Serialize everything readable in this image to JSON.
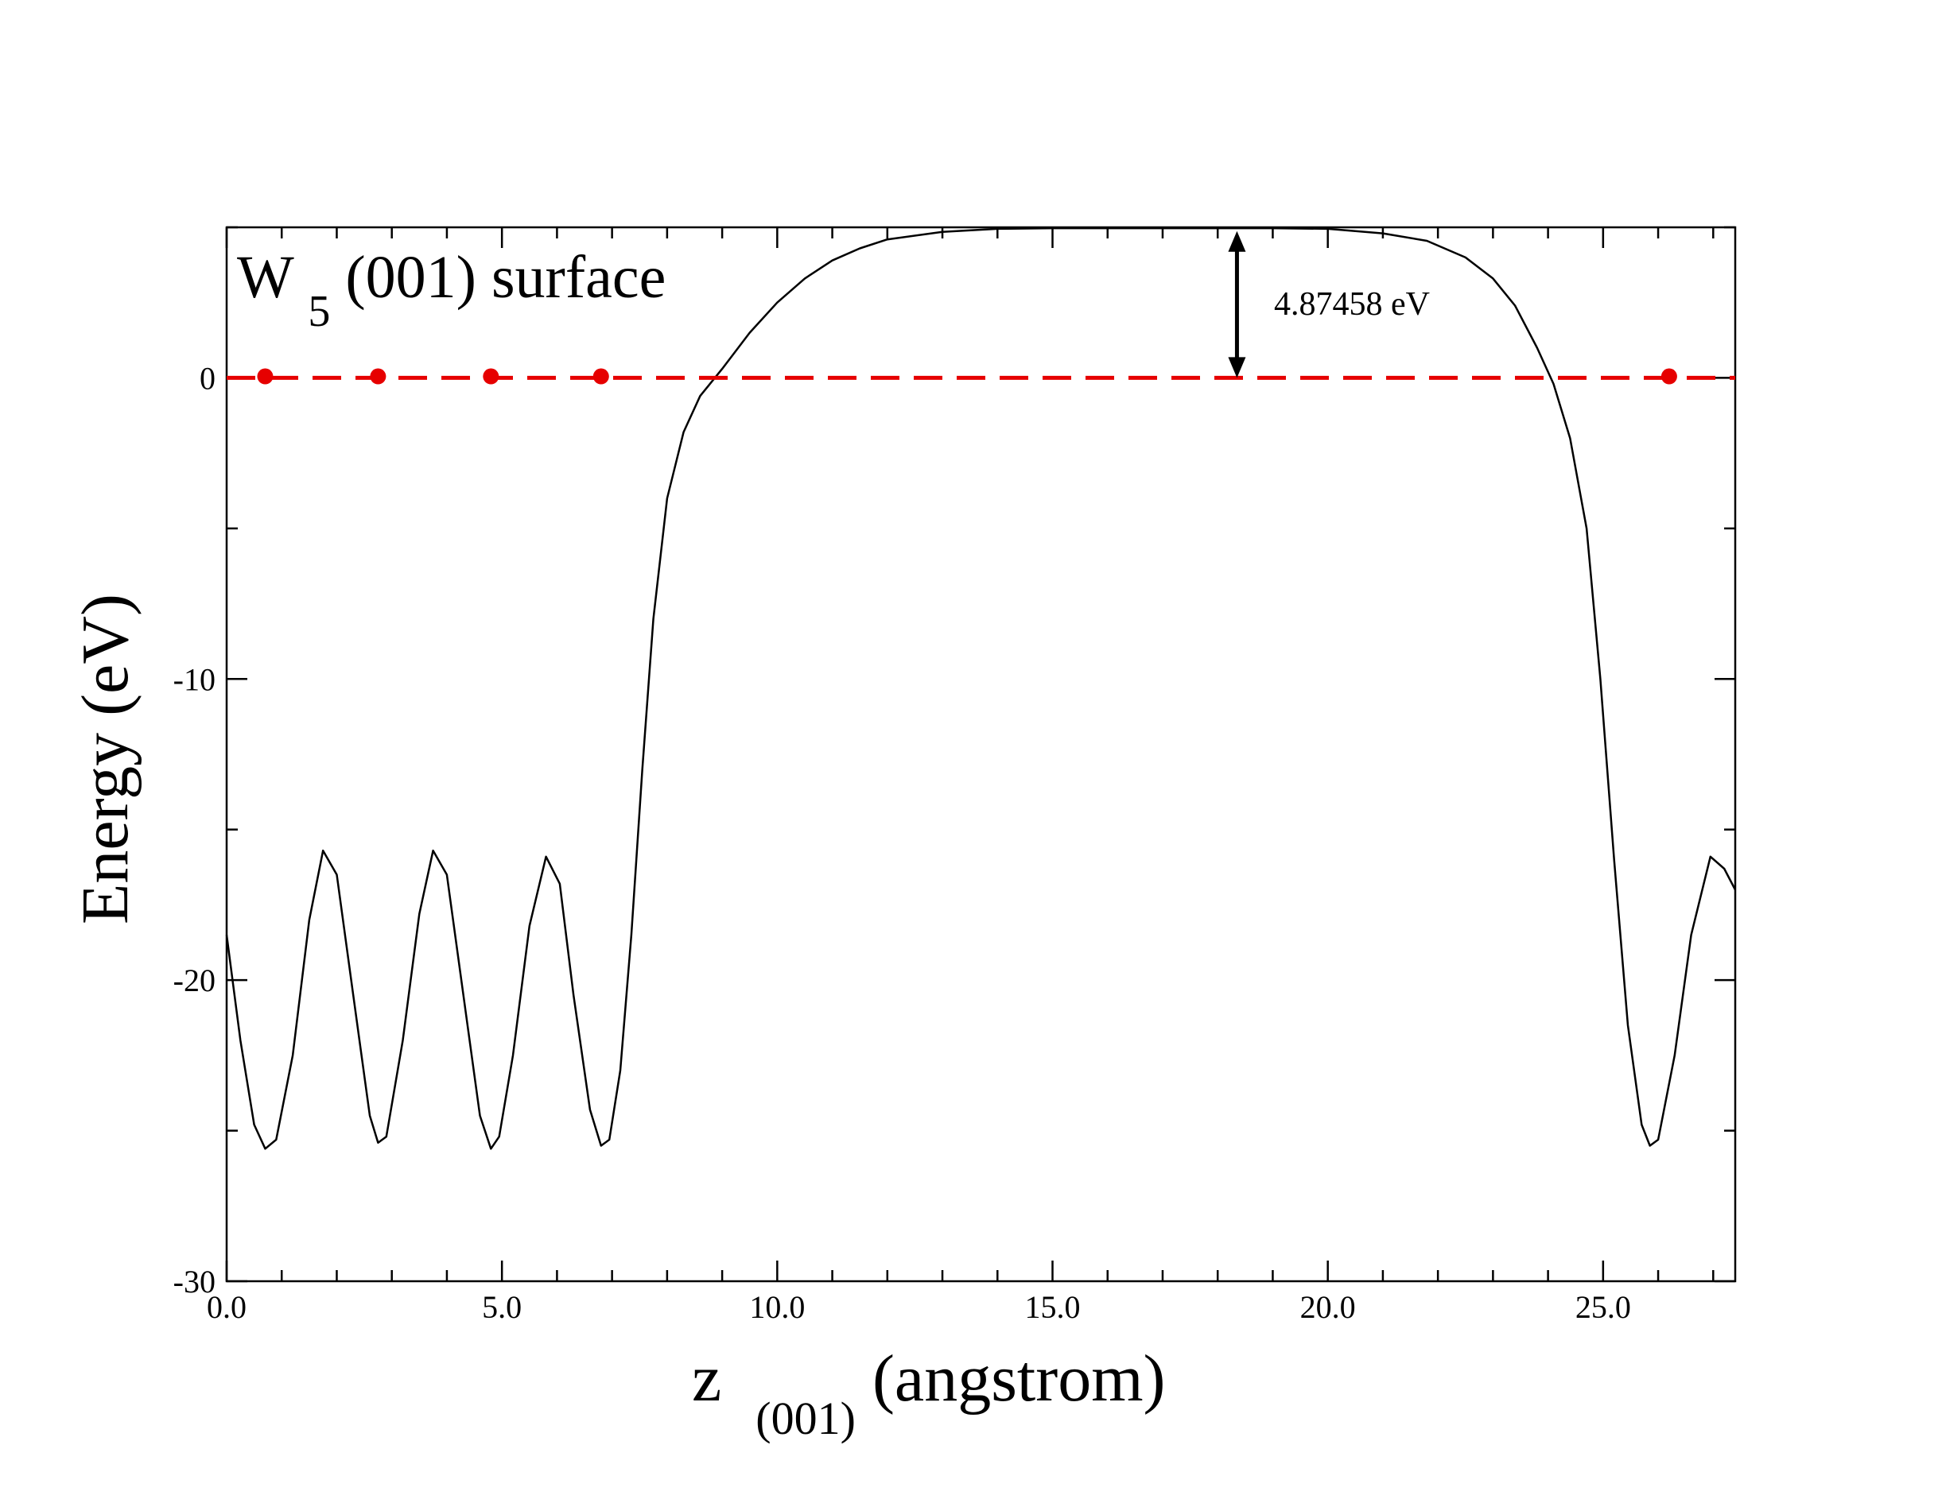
{
  "chart_data": {
    "type": "line",
    "title_main": "W",
    "title_sub": "5",
    "title_rest": " (001) surface",
    "xlabel_main": "z",
    "xlabel_sub": "(001)",
    "xlabel_rest": " (angstrom)",
    "ylabel": "Energy (eV)",
    "xlim": [
      0.0,
      27.4
    ],
    "ylim": [
      -30,
      5
    ],
    "x_ticks": [
      {
        "value": 0,
        "label": "0.0"
      },
      {
        "value": 5,
        "label": "5.0"
      },
      {
        "value": 10,
        "label": "10.0"
      },
      {
        "value": 15,
        "label": "15.0"
      },
      {
        "value": 20,
        "label": "20.0"
      },
      {
        "value": 25,
        "label": "25.0"
      }
    ],
    "x_minor_step": 1,
    "y_ticks": [
      {
        "value": 0,
        "label": "0"
      },
      {
        "value": -10,
        "label": "-10"
      },
      {
        "value": -20,
        "label": "-20"
      },
      {
        "value": -30,
        "label": "-30"
      }
    ],
    "y_minor_step": 5,
    "grid": false,
    "series": [
      {
        "style": "solid",
        "color": "#000000",
        "points": [
          [
            0.0,
            -18.5
          ],
          [
            0.25,
            -22.0
          ],
          [
            0.5,
            -24.8
          ],
          [
            0.7,
            -25.6
          ],
          [
            0.9,
            -25.3
          ],
          [
            1.2,
            -22.5
          ],
          [
            1.5,
            -18.0
          ],
          [
            1.75,
            -15.7
          ],
          [
            2.0,
            -16.5
          ],
          [
            2.3,
            -20.5
          ],
          [
            2.6,
            -24.5
          ],
          [
            2.75,
            -25.4
          ],
          [
            2.9,
            -25.2
          ],
          [
            3.2,
            -22.0
          ],
          [
            3.5,
            -17.8
          ],
          [
            3.75,
            -15.7
          ],
          [
            4.0,
            -16.5
          ],
          [
            4.3,
            -20.5
          ],
          [
            4.6,
            -24.5
          ],
          [
            4.8,
            -25.6
          ],
          [
            4.95,
            -25.2
          ],
          [
            5.2,
            -22.5
          ],
          [
            5.5,
            -18.2
          ],
          [
            5.8,
            -15.9
          ],
          [
            6.05,
            -16.8
          ],
          [
            6.3,
            -20.5
          ],
          [
            6.6,
            -24.3
          ],
          [
            6.8,
            -25.5
          ],
          [
            6.95,
            -25.3
          ],
          [
            7.15,
            -23.0
          ],
          [
            7.35,
            -18.5
          ],
          [
            7.55,
            -13.0
          ],
          [
            7.75,
            -8.0
          ],
          [
            8.0,
            -4.0
          ],
          [
            8.3,
            -1.8
          ],
          [
            8.6,
            -0.6
          ],
          [
            9.0,
            0.3
          ],
          [
            9.5,
            1.5
          ],
          [
            10.0,
            2.5
          ],
          [
            10.5,
            3.3
          ],
          [
            11.0,
            3.9
          ],
          [
            11.5,
            4.3
          ],
          [
            12.0,
            4.6
          ],
          [
            13.0,
            4.85
          ],
          [
            14.0,
            4.95
          ],
          [
            15.0,
            4.97
          ],
          [
            16.0,
            4.97
          ],
          [
            17.0,
            4.97
          ],
          [
            18.0,
            4.97
          ],
          [
            19.0,
            4.97
          ],
          [
            20.0,
            4.95
          ],
          [
            21.0,
            4.8
          ],
          [
            21.8,
            4.55
          ],
          [
            22.5,
            4.0
          ],
          [
            23.0,
            3.3
          ],
          [
            23.4,
            2.4
          ],
          [
            23.8,
            1.0
          ],
          [
            24.1,
            -0.2
          ],
          [
            24.4,
            -2.0
          ],
          [
            24.7,
            -5.0
          ],
          [
            24.95,
            -10.0
          ],
          [
            25.2,
            -16.0
          ],
          [
            25.45,
            -21.5
          ],
          [
            25.7,
            -24.8
          ],
          [
            25.85,
            -25.5
          ],
          [
            26.0,
            -25.3
          ],
          [
            26.3,
            -22.5
          ],
          [
            26.6,
            -18.5
          ],
          [
            26.95,
            -15.9
          ],
          [
            27.2,
            -16.3
          ],
          [
            27.4,
            -17.0
          ]
        ]
      },
      {
        "style": "dashed",
        "color": "#e60000",
        "points": [
          [
            0.0,
            0.0
          ],
          [
            27.4,
            0.0
          ]
        ]
      }
    ],
    "markers": {
      "color": "#e60000",
      "points": [
        [
          0.7,
          0.05
        ],
        [
          2.75,
          0.05
        ],
        [
          4.8,
          0.05
        ],
        [
          6.8,
          0.05
        ],
        [
          26.2,
          0.05
        ]
      ]
    },
    "annotation": {
      "text": "4.87458 eV",
      "arrow_x": 18.35,
      "arrow_from": 0.0,
      "arrow_to": 4.87458
    }
  }
}
